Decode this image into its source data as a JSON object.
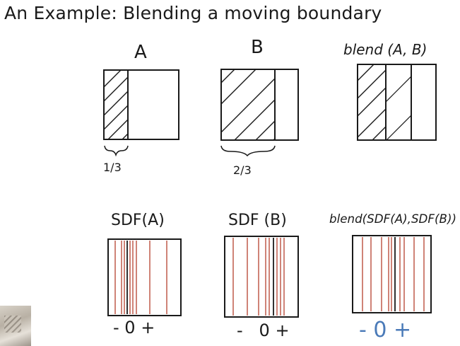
{
  "slide": {
    "title": "An Example: Blending a moving boundary"
  },
  "panels": {
    "a": {
      "label": "A",
      "annotation": "1/3"
    },
    "b": {
      "label": "B",
      "annotation": "2/3"
    },
    "blend": {
      "label": "blend (A, B)"
    },
    "sdf_a": {
      "label": "SDF(A)",
      "axis": "- 0 +"
    },
    "sdf_b": {
      "label": "SDF (B)",
      "axis": "-   0 +"
    },
    "sdf_blend": {
      "label": "blend(SDF(A),SDF(B))",
      "axis": "- 0 +"
    }
  },
  "colors": {
    "ink": "#1a1a1a",
    "red_line": "#b5402e",
    "blue_ink": "#4a7ab8"
  }
}
